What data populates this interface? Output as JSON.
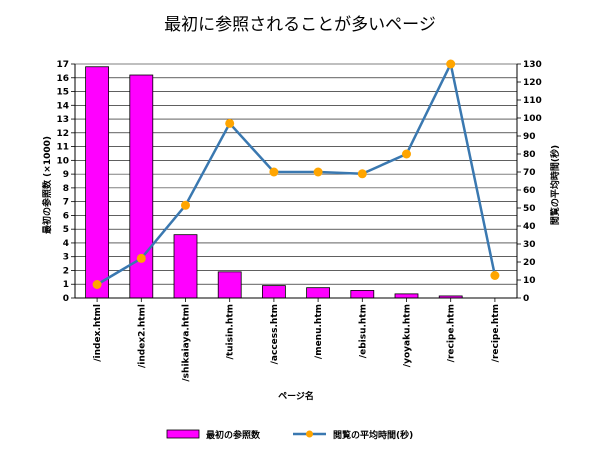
{
  "chart_data": {
    "type": "bar",
    "title": "最初に参照されることが多いページ",
    "xlabel": "ページ名",
    "ylabel": "最初の参照数 (×1000)",
    "y2label": "閲覧の平均時間(秒)",
    "categories": [
      "/index.html",
      "/index2.html",
      "/shikaiaya.html",
      "/tuisin.htm",
      "/access.htm",
      "/menu.htm",
      "/ebisu.htm",
      "/yoyaku.htm",
      "/recipe.htm",
      "/recipe.htm"
    ],
    "ylim": [
      0,
      17
    ],
    "yticks": [
      "0",
      "1",
      "2",
      "3",
      "4",
      "5",
      "6",
      "7",
      "8",
      "9",
      "10",
      "11",
      "12",
      "13",
      "14",
      "15",
      "16",
      "17"
    ],
    "y2lim": [
      0,
      130
    ],
    "y2ticks": [
      "0",
      "10",
      "20",
      "30",
      "40",
      "50",
      "60",
      "70",
      "80",
      "90",
      "100",
      "110",
      "120",
      "130"
    ],
    "grid": true,
    "legend_position": "bottom",
    "series": [
      {
        "name": "最初の参照数",
        "type": "bar",
        "axis": "left",
        "color": "#ff00ff",
        "values": [
          16.8,
          16.2,
          4.6,
          1.9,
          0.9,
          0.75,
          0.55,
          0.3,
          0.15,
          0
        ]
      },
      {
        "name": "閲覧の平均時間(秒)",
        "type": "line",
        "axis": "right",
        "color": "#3a78b0",
        "marker_color": "#ffa500",
        "values": [
          7.5,
          22,
          51.5,
          97,
          70,
          70,
          69,
          80,
          130,
          12.5
        ]
      }
    ]
  }
}
